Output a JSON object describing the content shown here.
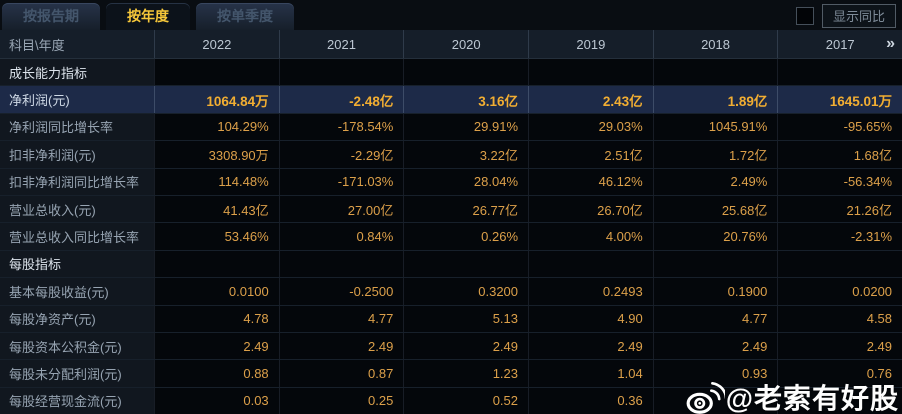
{
  "tabs": [
    {
      "label": "按报告期",
      "active": false
    },
    {
      "label": "按年度",
      "active": true
    },
    {
      "label": "按单季度",
      "active": false
    }
  ],
  "controls": {
    "show_yoy_label": "显示同比",
    "show_yoy_checked": false
  },
  "table": {
    "corner_header": "科目\\年度",
    "years": [
      "2022",
      "2021",
      "2020",
      "2019",
      "2018",
      "2017"
    ],
    "more_years_icon": "»",
    "rows": [
      {
        "type": "section",
        "label": "成长能力指标"
      },
      {
        "type": "data",
        "label": "净利润(元)",
        "highlight": true,
        "values": [
          "1064.84万",
          "-2.48亿",
          "3.16亿",
          "2.43亿",
          "1.89亿",
          "1645.01万"
        ]
      },
      {
        "type": "data",
        "label": "净利润同比增长率",
        "values": [
          "104.29%",
          "-178.54%",
          "29.91%",
          "29.03%",
          "1045.91%",
          "-95.65%"
        ]
      },
      {
        "type": "data",
        "label": "扣非净利润(元)",
        "values": [
          "3308.90万",
          "-2.29亿",
          "3.22亿",
          "2.51亿",
          "1.72亿",
          "1.68亿"
        ]
      },
      {
        "type": "data",
        "label": "扣非净利润同比增长率",
        "values": [
          "114.48%",
          "-171.03%",
          "28.04%",
          "46.12%",
          "2.49%",
          "-56.34%"
        ]
      },
      {
        "type": "data",
        "label": "营业总收入(元)",
        "values": [
          "41.43亿",
          "27.00亿",
          "26.77亿",
          "26.70亿",
          "25.68亿",
          "21.26亿"
        ]
      },
      {
        "type": "data",
        "label": "营业总收入同比增长率",
        "values": [
          "53.46%",
          "0.84%",
          "0.26%",
          "4.00%",
          "20.76%",
          "-2.31%"
        ]
      },
      {
        "type": "section",
        "label": "每股指标"
      },
      {
        "type": "data",
        "label": "基本每股收益(元)",
        "values": [
          "0.0100",
          "-0.2500",
          "0.3200",
          "0.2493",
          "0.1900",
          "0.0200"
        ]
      },
      {
        "type": "data",
        "label": "每股净资产(元)",
        "values": [
          "4.78",
          "4.77",
          "5.13",
          "4.90",
          "4.77",
          "4.58"
        ]
      },
      {
        "type": "data",
        "label": "每股资本公积金(元)",
        "values": [
          "2.49",
          "2.49",
          "2.49",
          "2.49",
          "2.49",
          "2.49"
        ]
      },
      {
        "type": "data",
        "label": "每股未分配利润(元)",
        "values": [
          "0.88",
          "0.87",
          "1.23",
          "1.04",
          "0.93",
          "0.76"
        ]
      },
      {
        "type": "data",
        "label": "每股经营现金流(元)",
        "values": [
          "0.03",
          "0.25",
          "0.52",
          "0.36",
          "",
          ""
        ]
      }
    ]
  },
  "watermark": {
    "handle": "@老索有好股",
    "icon": "weibo-icon"
  },
  "colors": {
    "accent_yellow": "#f6c73a",
    "value_orange": "#dca04a",
    "highlight_value_orange": "#f2ae32",
    "highlight_row_bg": "#1d2a48",
    "header_bg": "#151e29",
    "label_col_bg": "#11171f",
    "watermark": "#ffffff"
  }
}
